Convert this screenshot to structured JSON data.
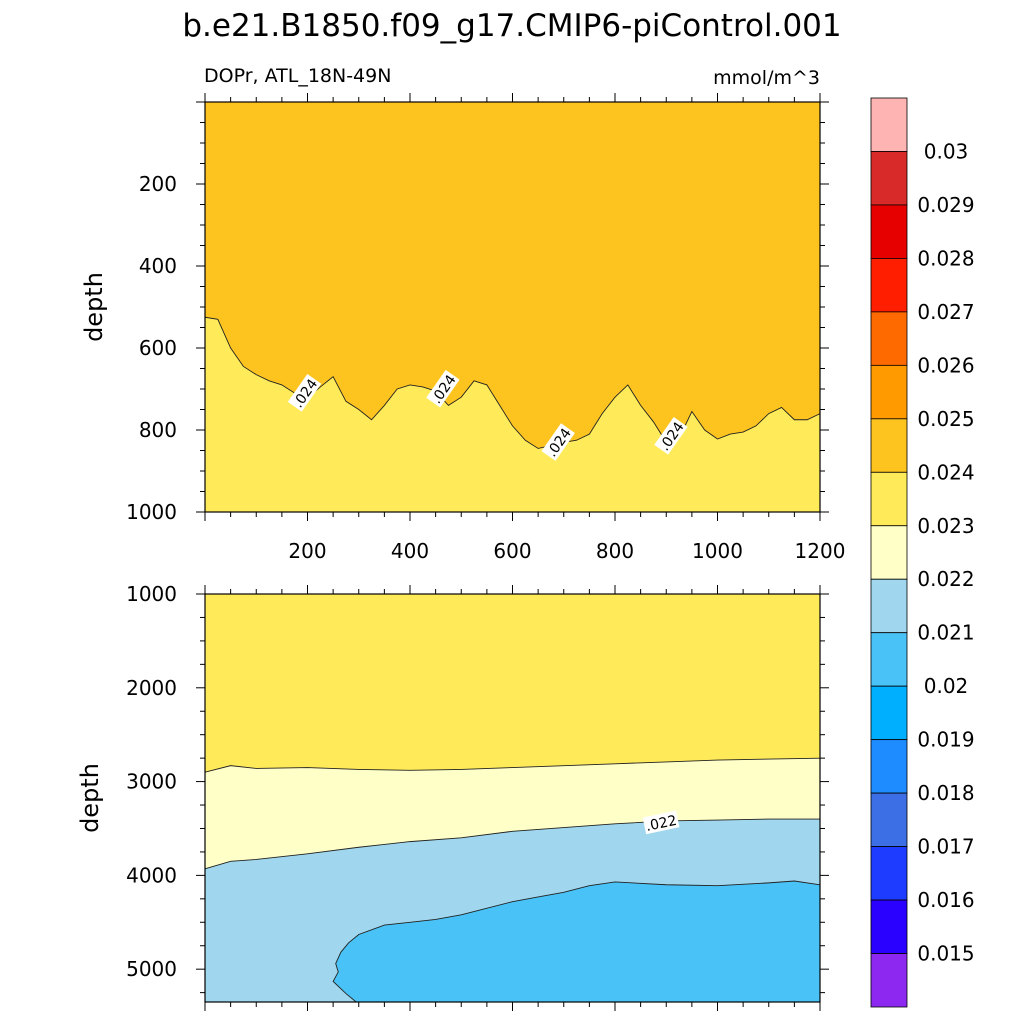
{
  "chart_data": {
    "type": "contour",
    "title": "b.e21.B1850.f09_g17.CMIP6-piControl.001",
    "left_string": "DOPr, ATL_18N-49N",
    "units": "mmol/m^3",
    "panels": [
      {
        "name": "upper",
        "ylabel": "depth",
        "xlim": [
          0,
          1200
        ],
        "ylim": [
          1000,
          0
        ],
        "x_ticks": [
          "200",
          "400",
          "600",
          "800",
          "1000",
          "1200"
        ],
        "y_ticks": [
          "200",
          "400",
          "600",
          "800",
          "1000"
        ],
        "fill_bands": [
          {
            "range": "0.024-0.025",
            "boundary_top": null
          },
          {
            "range": "0.023-0.024",
            "boundary_top": [
              [
                0,
                525
              ],
              [
                25,
                530
              ],
              [
                50,
                600
              ],
              [
                75,
                645
              ],
              [
                100,
                665
              ],
              [
                125,
                680
              ],
              [
                150,
                690
              ],
              [
                175,
                710
              ],
              [
                200,
                722
              ],
              [
                225,
                695
              ],
              [
                250,
                670
              ],
              [
                275,
                730
              ],
              [
                300,
                750
              ],
              [
                325,
                775
              ],
              [
                350,
                740
              ],
              [
                375,
                700
              ],
              [
                400,
                690
              ],
              [
                425,
                695
              ],
              [
                450,
                705
              ],
              [
                475,
                740
              ],
              [
                500,
                720
              ],
              [
                525,
                680
              ],
              [
                550,
                690
              ],
              [
                575,
                740
              ],
              [
                600,
                790
              ],
              [
                625,
                825
              ],
              [
                650,
                845
              ],
              [
                675,
                838
              ],
              [
                700,
                830
              ],
              [
                725,
                825
              ],
              [
                750,
                810
              ],
              [
                775,
                760
              ],
              [
                800,
                720
              ],
              [
                825,
                690
              ],
              [
                850,
                740
              ],
              [
                875,
                780
              ],
              [
                900,
                830
              ],
              [
                925,
                820
              ],
              [
                950,
                755
              ],
              [
                975,
                800
              ],
              [
                1000,
                822
              ],
              [
                1025,
                810
              ],
              [
                1050,
                805
              ],
              [
                1075,
                790
              ],
              [
                1100,
                760
              ],
              [
                1125,
                745
              ],
              [
                1150,
                775
              ],
              [
                1175,
                775
              ],
              [
                1200,
                760
              ]
            ]
          }
        ],
        "contour_labels": [
          {
            "text": ".024",
            "x": 195,
            "y": 710
          },
          {
            "text": ".024",
            "x": 465,
            "y": 700
          },
          {
            "text": ".024",
            "x": 690,
            "y": 830
          },
          {
            "text": ".024",
            "x": 910,
            "y": 815
          }
        ]
      },
      {
        "name": "lower",
        "ylabel": "depth",
        "xlim": [
          0,
          1200
        ],
        "ylim": [
          5350,
          1000
        ],
        "y_ticks": [
          "1000",
          "2000",
          "3000",
          "4000",
          "5000"
        ],
        "fill_bands": [
          {
            "range": "0.023-0.024",
            "boundary_top": null
          },
          {
            "range": "0.022-0.023",
            "boundary_top": [
              [
                0,
                2900
              ],
              [
                50,
                2830
              ],
              [
                100,
                2860
              ],
              [
                200,
                2850
              ],
              [
                300,
                2870
              ],
              [
                400,
                2880
              ],
              [
                500,
                2870
              ],
              [
                600,
                2850
              ],
              [
                700,
                2830
              ],
              [
                800,
                2810
              ],
              [
                900,
                2790
              ],
              [
                1000,
                2770
              ],
              [
                1100,
                2760
              ],
              [
                1200,
                2750
              ]
            ]
          },
          {
            "range": "0.021-0.022",
            "boundary_top": [
              [
                0,
                3930
              ],
              [
                50,
                3850
              ],
              [
                100,
                3830
              ],
              [
                200,
                3770
              ],
              [
                300,
                3700
              ],
              [
                400,
                3640
              ],
              [
                500,
                3600
              ],
              [
                600,
                3530
              ],
              [
                700,
                3490
              ],
              [
                800,
                3450
              ],
              [
                900,
                3420
              ],
              [
                1000,
                3410
              ],
              [
                1100,
                3400
              ],
              [
                1200,
                3400
              ]
            ]
          },
          {
            "range": "0.020-0.021",
            "boundary_top": [
              [
                1200,
                4100
              ],
              [
                1150,
                4060
              ],
              [
                1100,
                4080
              ],
              [
                1000,
                4110
              ],
              [
                900,
                4100
              ],
              [
                800,
                4070
              ],
              [
                750,
                4110
              ],
              [
                700,
                4180
              ],
              [
                650,
                4230
              ],
              [
                600,
                4280
              ],
              [
                500,
                4420
              ],
              [
                450,
                4470
              ],
              [
                400,
                4500
              ],
              [
                350,
                4530
              ],
              [
                300,
                4630
              ],
              [
                280,
                4720
              ],
              [
                265,
                4820
              ],
              [
                255,
                4940
              ],
              [
                260,
                5030
              ],
              [
                250,
                5130
              ],
              [
                275,
                5260
              ],
              [
                295,
                5350
              ]
            ]
          }
        ],
        "contour_labels": [
          {
            "text": ".022",
            "x": 890,
            "y": 3440
          }
        ]
      }
    ],
    "colorbar": {
      "labels": [
        "0.03",
        "0.029",
        "0.028",
        "0.027",
        "0.026",
        "0.025",
        "0.024",
        "0.023",
        "0.022",
        "0.021",
        "0.02",
        "0.019",
        "0.018",
        "0.017",
        "0.016",
        "0.015"
      ],
      "colors": [
        "#ffb4b4",
        "#d92a2a",
        "#e60000",
        "#ff1e00",
        "#ff6a00",
        "#ff9b00",
        "#fdc31e",
        "#ffeb5a",
        "#ffffc8",
        "#a0d7ee",
        "#49c3f7",
        "#00b0ff",
        "#1e8cff",
        "#3c6ee6",
        "#1e3cff",
        "#2a00ff",
        "#8c28f0"
      ]
    }
  }
}
